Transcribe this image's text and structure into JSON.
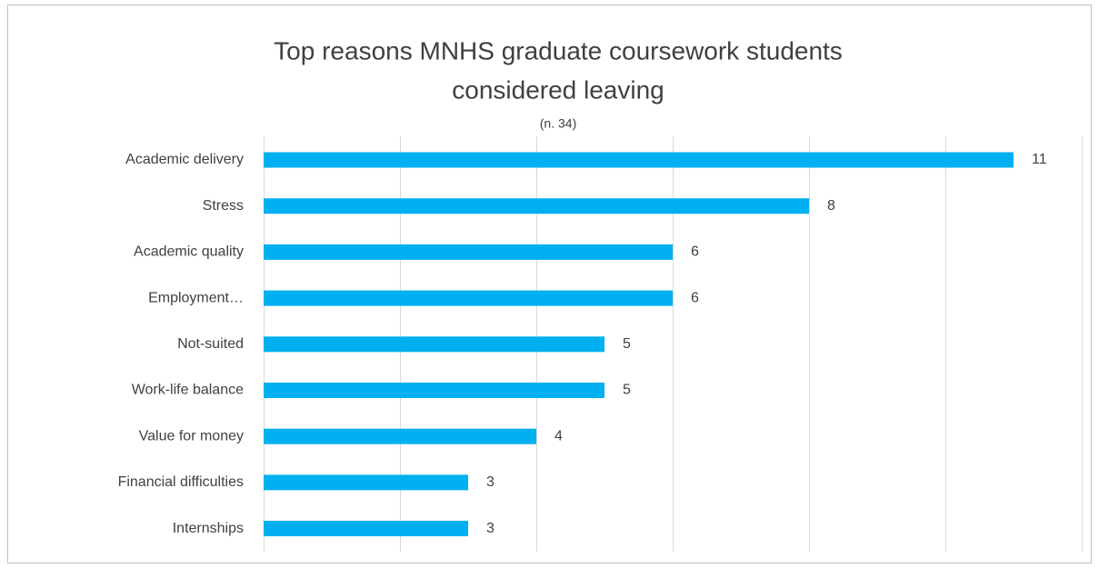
{
  "chart_data": {
    "type": "bar",
    "orientation": "horizontal",
    "title": [
      "Top reasons MNHS graduate coursework students",
      "considered leaving"
    ],
    "subtitle": "(n. 34)",
    "categories": [
      "Academic delivery",
      "Stress",
      "Academic quality",
      "Employment…",
      "Not-suited",
      "Work-life balance",
      "Value for money",
      "Financial difficulties",
      "Internships"
    ],
    "values": [
      11,
      8,
      6,
      6,
      5,
      5,
      4,
      3,
      3
    ],
    "color": "#00b0f0",
    "xlim": [
      0,
      12
    ],
    "xticks": [
      0,
      2,
      4,
      6,
      8,
      10,
      12
    ],
    "grid": true
  }
}
